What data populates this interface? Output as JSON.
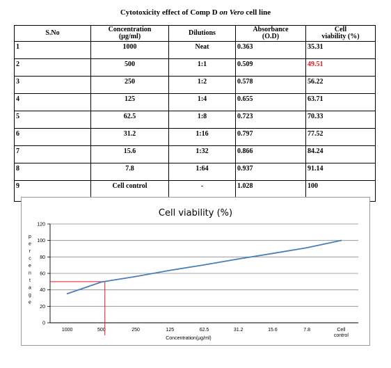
{
  "table": {
    "title_prefix": "Cytotoxicity effect of Comp D",
    "title_italic": "on Vero",
    "title_suffix": "cell line",
    "headers": [
      "S.No",
      "Concentration (µg/ml)",
      "Dilutions",
      "Absorbance (O.D)",
      "Cell viability (%)"
    ],
    "rows": [
      {
        "sno": "1",
        "conc": "1000",
        "dil": "Neat",
        "abs": "0.363",
        "via": "35.31"
      },
      {
        "sno": "2",
        "conc": "500",
        "dil": "1:1",
        "abs": "0.509",
        "via": "49.51"
      },
      {
        "sno": "3",
        "conc": "250",
        "dil": "1:2",
        "abs": "0.578",
        "via": "56.22"
      },
      {
        "sno": "4",
        "conc": "125",
        "dil": "1:4",
        "abs": "0.655",
        "via": "63.71"
      },
      {
        "sno": "5",
        "conc": "62.5",
        "dil": "1:8",
        "abs": "0.723",
        "via": "70.33"
      },
      {
        "sno": "6",
        "conc": "31.2",
        "dil": "1:16",
        "abs": "0.797",
        "via": "77.52"
      },
      {
        "sno": "7",
        "conc": "15.6",
        "dil": "1:32",
        "abs": "0.866",
        "via": "84.24"
      },
      {
        "sno": "8",
        "conc": "7.8",
        "dil": "1:64",
        "abs": "0.937",
        "via": "91.14"
      },
      {
        "sno": "9",
        "conc": "Cell control",
        "dil": "-",
        "abs": "1.028",
        "via": "100"
      }
    ],
    "highlight_color": "#e8161c"
  },
  "chart_data": {
    "type": "line",
    "title": "Cell viability (%)",
    "xlabel": "Concentration(µg/ml)",
    "ylabel": "percentage",
    "categories": [
      "1000",
      "500",
      "250",
      "125",
      "62.5",
      "31.2",
      "15.6",
      "7.8",
      "Cell control"
    ],
    "series": [
      {
        "values": [
          35.31,
          49.51,
          56.22,
          63.71,
          70.33,
          77.52,
          84.24,
          91.14,
          100
        ],
        "color": "#4a7ebb"
      }
    ],
    "ylim": [
      0,
      120
    ],
    "yticks": [
      0,
      20,
      40,
      60,
      80,
      100,
      120
    ],
    "grid": true,
    "ic50_marker": {
      "y": 50,
      "x_position": 1.1,
      "color": "#e8161c"
    }
  }
}
